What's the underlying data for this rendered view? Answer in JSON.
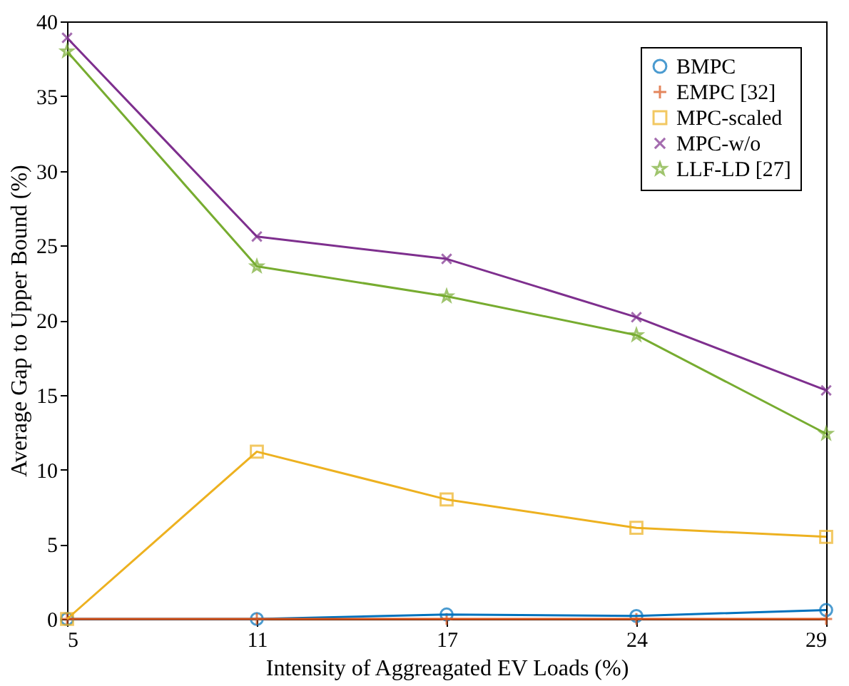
{
  "chart_data": {
    "type": "line",
    "xlabel": "Intensity of Aggreagated EV Loads (%)",
    "ylabel": "Average Gap to Upper Bound (%)",
    "categories": [
      "5",
      "11",
      "17",
      "24",
      "29"
    ],
    "series": [
      {
        "name": "BMPC",
        "color": "#0072bd",
        "marker": "circle",
        "values": [
          0,
          0,
          0.3,
          0.2,
          0.6
        ]
      },
      {
        "name": "EMPC [32]",
        "color": "#d95319",
        "marker": "cross",
        "values": [
          0,
          0,
          0,
          0,
          0
        ]
      },
      {
        "name": "MPC-scaled",
        "color": "#edb120",
        "marker": "square",
        "values": [
          0,
          11.2,
          8.0,
          6.1,
          5.5
        ]
      },
      {
        "name": "MPC-w/o",
        "color": "#7e2f8e",
        "marker": "x",
        "values": [
          38.9,
          25.6,
          24.1,
          20.2,
          15.3
        ]
      },
      {
        "name": "LLF-LD [27]",
        "color": "#77ac30",
        "marker": "star",
        "values": [
          38.0,
          23.6,
          21.6,
          19.0,
          12.4
        ]
      }
    ],
    "ylim": [
      0,
      40
    ],
    "yticks": [
      0,
      5,
      10,
      15,
      20,
      25,
      30,
      35,
      40
    ],
    "grid": false,
    "legend": "top right",
    "line_style": "solid"
  }
}
